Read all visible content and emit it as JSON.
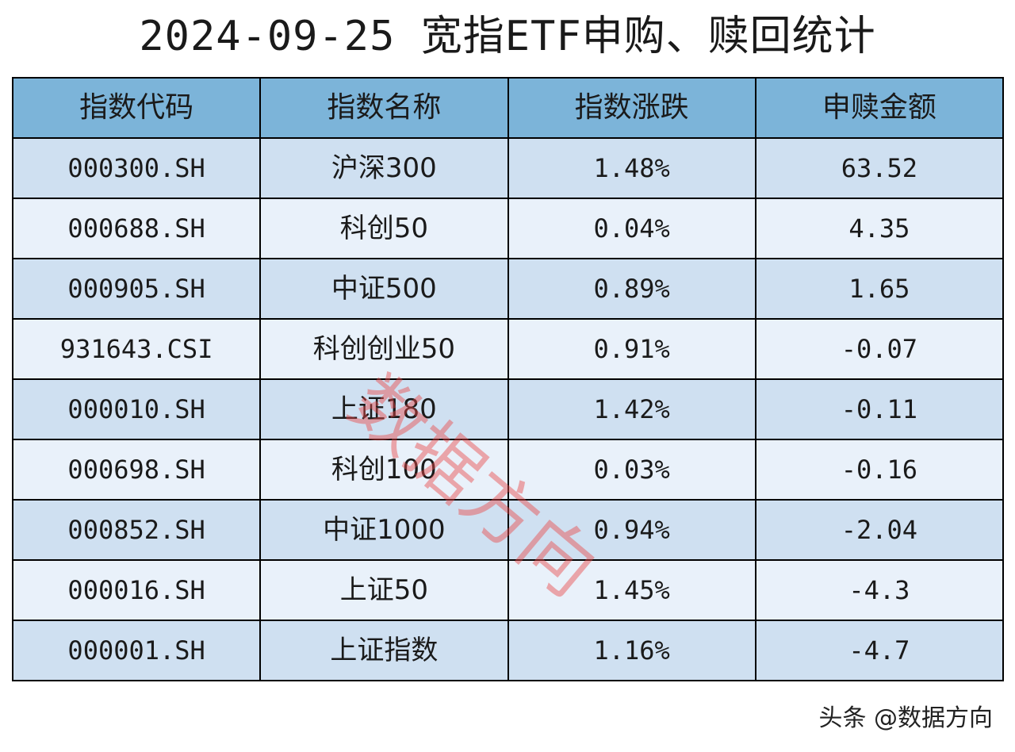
{
  "title": "2024-09-25 宽指ETF申购、赎回统计",
  "watermark": "数据方向",
  "footer": "头条 @数据方向",
  "colors": {
    "header_bg": "#7cb4d9",
    "row_odd_bg": "#cfe0f1",
    "row_even_bg": "#e9f1fa",
    "watermark": "#e84848"
  },
  "chart_data": {
    "type": "table",
    "title": "2024-09-25 宽指ETF申购、赎回统计",
    "columns": [
      "指数代码",
      "指数名称",
      "指数涨跌",
      "申赎金额"
    ],
    "rows": [
      [
        "000300.SH",
        "沪深300",
        "1.48%",
        "63.52"
      ],
      [
        "000688.SH",
        "科创50",
        "0.04%",
        "4.35"
      ],
      [
        "000905.SH",
        "中证500",
        "0.89%",
        "1.65"
      ],
      [
        "931643.CSI",
        "科创创业50",
        "0.91%",
        "-0.07"
      ],
      [
        "000010.SH",
        "上证180",
        "1.42%",
        "-0.11"
      ],
      [
        "000698.SH",
        "科创100",
        "0.03%",
        "-0.16"
      ],
      [
        "000852.SH",
        "中证1000",
        "0.94%",
        "-2.04"
      ],
      [
        "000016.SH",
        "上证50",
        "1.45%",
        "-4.3"
      ],
      [
        "000001.SH",
        "上证指数",
        "1.16%",
        "-4.7"
      ]
    ]
  }
}
